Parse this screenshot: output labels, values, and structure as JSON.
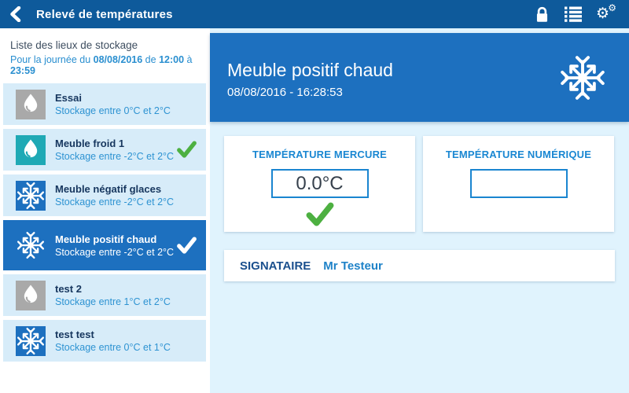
{
  "topbar": {
    "title": "Relevé de températures",
    "icons": [
      "back-icon",
      "lock-icon",
      "list-icon",
      "gears-icon"
    ]
  },
  "sidebar": {
    "title": "Liste des lieux de stockage",
    "period": {
      "prefix": "Pour la journée du ",
      "date": "08/08/2016",
      "mid1": " de ",
      "time_start": "12:00",
      "mid2": " à ",
      "time_end": "23:59"
    },
    "items": [
      {
        "name": "Essai",
        "range": "Stockage entre 0°C et 2°C",
        "icon": "droplet",
        "icon_bg": "#a9a9a9",
        "checked": false,
        "selected": false
      },
      {
        "name": "Meuble froid 1",
        "range": "Stockage entre -2°C et 2°C",
        "icon": "droplet",
        "icon_bg": "#1fa9b5",
        "checked": true,
        "selected": false
      },
      {
        "name": "Meuble négatif glaces",
        "range": "Stockage entre -2°C et 2°C",
        "icon": "snowflake",
        "icon_bg": "#1d70bf",
        "checked": false,
        "selected": false
      },
      {
        "name": "Meuble positif chaud",
        "range": "Stockage entre -2°C et 2°C",
        "icon": "snowflake",
        "icon_bg": null,
        "checked": true,
        "selected": true
      },
      {
        "name": "test 2",
        "range": "Stockage entre 1°C et 2°C",
        "icon": "droplet",
        "icon_bg": "#a9a9a9",
        "checked": false,
        "selected": false
      },
      {
        "name": "test test",
        "range": "Stockage entre 0°C et 1°C",
        "icon": "snowflake",
        "icon_bg": "#1d70bf",
        "checked": false,
        "selected": false
      }
    ]
  },
  "main": {
    "title": "Meuble positif chaud",
    "datetime": "08/08/2016 - 16:28:53",
    "header_icon": "snowflake-icon",
    "cards": [
      {
        "label": "TEMPÉRATURE MERCURE",
        "value": "0.0°C",
        "checked": true
      },
      {
        "label": "TEMPÉRATURE NUMÉRIQUE",
        "value": "",
        "checked": false
      }
    ],
    "signer_label": "SIGNATAIRE",
    "signer_name": "Mr Testeur"
  },
  "colors": {
    "topbar": "#0e5a9b",
    "accent_blue": "#1d70bf",
    "item_bg": "#d7ecf9",
    "main_bg": "#e0f3fd",
    "text_blue": "#2e93d2",
    "check_green": "#4db041",
    "teal_icon": "#1fa9b5",
    "gray_icon": "#a9a9a9"
  }
}
